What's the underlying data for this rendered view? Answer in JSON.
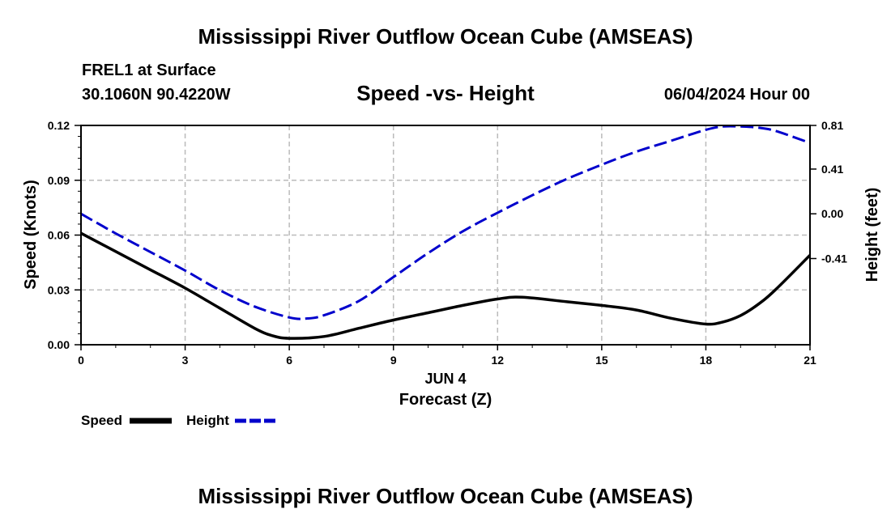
{
  "chart_data": {
    "type": "line",
    "title": "Mississippi River Outflow Ocean Cube (AMSEAS)",
    "footer_title": "Mississippi River Outflow Ocean Cube (AMSEAS)",
    "station": "FREL1 at Surface",
    "location": "30.1060N  90.4220W",
    "subtitle": "Speed -vs- Height",
    "datetime": "06/04/2024 Hour 00",
    "xlabel": "Forecast (Z)",
    "xdate_label": "JUN 4",
    "ylabel_left": "Speed (Knots)",
    "ylabel_right": "Height (feet)",
    "xlim": [
      0,
      21
    ],
    "ylim_left": [
      0,
      0.12
    ],
    "ylim_right": [
      -1.2,
      0.81
    ],
    "x_ticks": [
      "0",
      "3",
      "6",
      "9",
      "12",
      "15",
      "18",
      "21"
    ],
    "y_left_ticks": [
      {
        "value": 0.0,
        "label": "0.00"
      },
      {
        "value": 0.03,
        "label": "0.03"
      },
      {
        "value": 0.06,
        "label": "0.06"
      },
      {
        "value": 0.09,
        "label": "0.09"
      },
      {
        "value": 0.12,
        "label": "0.12"
      }
    ],
    "y_right_ticks": [
      {
        "value": -0.41,
        "label": "-0.41"
      },
      {
        "value": 0.0,
        "label": "0.00"
      },
      {
        "value": 0.41,
        "label": "0.41"
      },
      {
        "value": 0.81,
        "label": "0.81"
      }
    ],
    "grid": true,
    "series": [
      {
        "name": "Speed",
        "axis": "left",
        "color": "#000000",
        "style": "solid",
        "x": [
          0,
          1,
          2,
          3,
          4,
          5,
          5.5,
          6,
          7,
          8,
          9,
          10,
          11,
          12,
          12.7,
          14,
          15,
          16,
          17,
          18,
          18.5,
          19,
          19.5,
          20,
          21
        ],
        "values": [
          0.061,
          0.051,
          0.041,
          0.031,
          0.02,
          0.009,
          0.005,
          0.0035,
          0.0045,
          0.009,
          0.0135,
          0.0175,
          0.0215,
          0.025,
          0.026,
          0.0235,
          0.0215,
          0.019,
          0.0145,
          0.0113,
          0.0125,
          0.016,
          0.022,
          0.03,
          0.049
        ]
      },
      {
        "name": "Height",
        "axis": "right",
        "color": "#0000cc",
        "style": "dashed",
        "x": [
          0,
          1,
          2,
          3,
          4,
          5,
          6,
          6.5,
          7,
          8,
          9,
          10,
          11,
          12,
          13,
          14,
          15,
          16,
          17,
          18,
          18.5,
          19,
          19.5,
          20,
          21
        ],
        "values": [
          0.0,
          -0.18,
          -0.35,
          -0.52,
          -0.7,
          -0.85,
          -0.95,
          -0.96,
          -0.93,
          -0.8,
          -0.58,
          -0.36,
          -0.16,
          0.01,
          0.17,
          0.32,
          0.45,
          0.57,
          0.67,
          0.77,
          0.8,
          0.8,
          0.79,
          0.76,
          0.65
        ]
      }
    ],
    "legend": [
      "Speed",
      "Height"
    ]
  }
}
